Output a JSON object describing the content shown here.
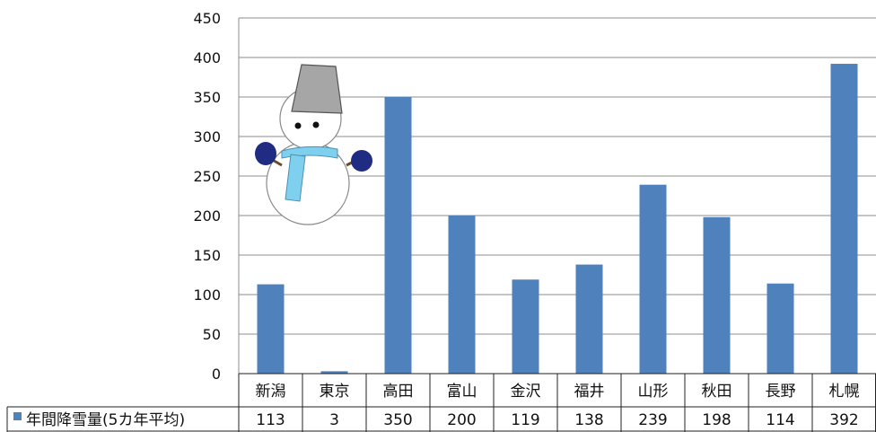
{
  "chart_data": {
    "type": "bar",
    "categories": [
      "新潟",
      "東京",
      "高田",
      "富山",
      "金沢",
      "福井",
      "山形",
      "秋田",
      "長野",
      "札幌"
    ],
    "series": [
      {
        "name": "年間降雪量(5カ年平均)",
        "values": [
          113,
          3,
          350,
          200,
          119,
          138,
          239,
          198,
          114,
          392
        ]
      }
    ],
    "ylim": [
      0,
      450
    ],
    "yticks": [
      "0",
      "50",
      "100",
      "150",
      "200",
      "250",
      "300",
      "350",
      "400",
      "450"
    ],
    "grid": true,
    "legend": "data-table-left",
    "table_values": [
      "113",
      "3",
      "350",
      "200",
      "119",
      "138",
      "239",
      "198",
      "114",
      "392"
    ],
    "colors": {
      "bar": "#4f81bd"
    }
  },
  "illustration": {
    "name": "snowman",
    "colors": {
      "hat": "#a6a6a6",
      "mittens": "#1f2c82",
      "scarf": "#7fd0ef",
      "body": "#ffffff"
    }
  }
}
